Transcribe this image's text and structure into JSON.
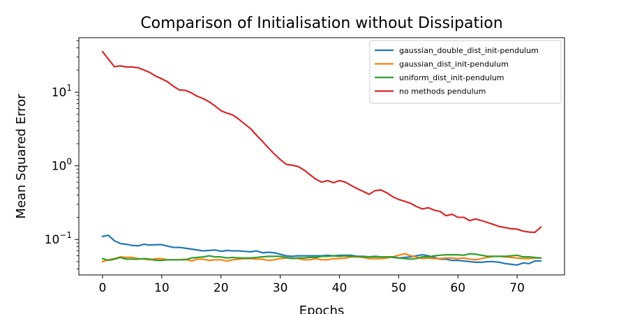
{
  "chart_data": {
    "type": "line",
    "title": "Comparison of Initialisation without Dissipation",
    "xlabel": "Epochs",
    "ylabel": "Mean Squared Error",
    "xlim": [
      -4,
      78
    ],
    "ylim": [
      0.033,
      55
    ],
    "yscale": "log",
    "grid": false,
    "legend_position": "top-right",
    "xticks": [
      0,
      10,
      20,
      30,
      40,
      50,
      60,
      70
    ],
    "yticks": [
      {
        "value": 10,
        "base": "10",
        "exp": "1"
      },
      {
        "value": 1,
        "base": "10",
        "exp": "0"
      },
      {
        "value": 0.1,
        "base": "10",
        "exp": "−1"
      }
    ],
    "x": [
      0,
      1,
      2,
      3,
      4,
      5,
      6,
      7,
      8,
      9,
      10,
      11,
      12,
      13,
      14,
      15,
      16,
      17,
      18,
      19,
      20,
      21,
      22,
      23,
      24,
      25,
      26,
      27,
      28,
      29,
      30,
      31,
      32,
      33,
      34,
      35,
      36,
      37,
      38,
      39,
      40,
      41,
      42,
      43,
      44,
      45,
      46,
      47,
      48,
      49,
      50,
      51,
      52,
      53,
      54,
      55,
      56,
      57,
      58,
      59,
      60,
      61,
      62,
      63,
      64,
      65,
      66,
      67,
      68,
      69,
      70,
      71,
      72,
      73,
      74
    ],
    "series": [
      {
        "name": "gaussian_double_dist_init-pendulum",
        "color": "#1f77b4",
        "values": [
          0.11,
          0.114,
          0.096,
          0.088,
          0.086,
          0.083,
          0.082,
          0.086,
          0.084,
          0.085,
          0.085,
          0.081,
          0.078,
          0.078,
          0.076,
          0.074,
          0.072,
          0.07,
          0.071,
          0.072,
          0.069,
          0.071,
          0.07,
          0.07,
          0.069,
          0.068,
          0.07,
          0.066,
          0.067,
          0.066,
          0.063,
          0.06,
          0.059,
          0.06,
          0.06,
          0.06,
          0.06,
          0.06,
          0.061,
          0.06,
          0.061,
          0.061,
          0.061,
          0.059,
          0.059,
          0.058,
          0.059,
          0.058,
          0.058,
          0.057,
          0.056,
          0.057,
          0.058,
          0.06,
          0.062,
          0.06,
          0.057,
          0.054,
          0.054,
          0.052,
          0.052,
          0.051,
          0.05,
          0.049,
          0.049,
          0.05,
          0.05,
          0.049,
          0.047,
          0.046,
          0.045,
          0.048,
          0.047,
          0.051,
          0.051
        ]
      },
      {
        "name": "gaussian_dist_init-pendulum",
        "color": "#ff7f0e",
        "values": [
          0.05,
          0.053,
          0.055,
          0.058,
          0.057,
          0.057,
          0.055,
          0.054,
          0.053,
          0.055,
          0.055,
          0.053,
          0.053,
          0.053,
          0.054,
          0.051,
          0.054,
          0.054,
          0.052,
          0.053,
          0.053,
          0.051,
          0.053,
          0.054,
          0.055,
          0.055,
          0.054,
          0.054,
          0.052,
          0.053,
          0.055,
          0.056,
          0.056,
          0.055,
          0.053,
          0.053,
          0.055,
          0.053,
          0.053,
          0.055,
          0.055,
          0.056,
          0.058,
          0.058,
          0.057,
          0.055,
          0.055,
          0.055,
          0.056,
          0.058,
          0.061,
          0.064,
          0.06,
          0.058,
          0.055,
          0.056,
          0.055,
          0.055,
          0.056,
          0.056,
          0.055,
          0.056,
          0.054,
          0.053,
          0.055,
          0.057,
          0.059,
          0.059,
          0.058,
          0.057,
          0.056,
          0.055,
          0.055,
          0.056,
          0.056
        ]
      },
      {
        "name": "uniform_dist_init-pendulum",
        "color": "#2ca02c",
        "values": [
          0.055,
          0.052,
          0.054,
          0.057,
          0.054,
          0.054,
          0.054,
          0.055,
          0.054,
          0.052,
          0.052,
          0.053,
          0.053,
          0.053,
          0.053,
          0.056,
          0.057,
          0.058,
          0.06,
          0.058,
          0.058,
          0.056,
          0.057,
          0.056,
          0.056,
          0.056,
          0.057,
          0.058,
          0.059,
          0.059,
          0.059,
          0.057,
          0.055,
          0.056,
          0.056,
          0.057,
          0.057,
          0.059,
          0.059,
          0.06,
          0.059,
          0.06,
          0.059,
          0.059,
          0.058,
          0.058,
          0.058,
          0.058,
          0.058,
          0.058,
          0.056,
          0.055,
          0.054,
          0.055,
          0.058,
          0.058,
          0.06,
          0.061,
          0.062,
          0.062,
          0.062,
          0.061,
          0.064,
          0.063,
          0.061,
          0.059,
          0.059,
          0.059,
          0.059,
          0.06,
          0.061,
          0.058,
          0.058,
          0.057,
          0.056
        ]
      },
      {
        "name": "no methods pendulum",
        "color": "#d62728",
        "values": [
          35.5,
          28.0,
          22.2,
          22.8,
          22.0,
          22.0,
          21.5,
          20.0,
          18.5,
          16.5,
          15.2,
          13.8,
          12.0,
          10.7,
          10.6,
          9.8,
          8.8,
          8.2,
          7.4,
          6.5,
          5.6,
          5.2,
          4.9,
          4.3,
          3.7,
          3.2,
          2.6,
          2.15,
          1.75,
          1.45,
          1.22,
          1.05,
          1.02,
          0.98,
          0.88,
          0.76,
          0.66,
          0.6,
          0.63,
          0.59,
          0.63,
          0.6,
          0.54,
          0.49,
          0.45,
          0.41,
          0.46,
          0.47,
          0.43,
          0.38,
          0.35,
          0.33,
          0.31,
          0.28,
          0.26,
          0.27,
          0.25,
          0.24,
          0.21,
          0.22,
          0.2,
          0.2,
          0.18,
          0.19,
          0.18,
          0.17,
          0.16,
          0.15,
          0.145,
          0.14,
          0.138,
          0.13,
          0.126,
          0.125,
          0.147
        ]
      }
    ]
  }
}
